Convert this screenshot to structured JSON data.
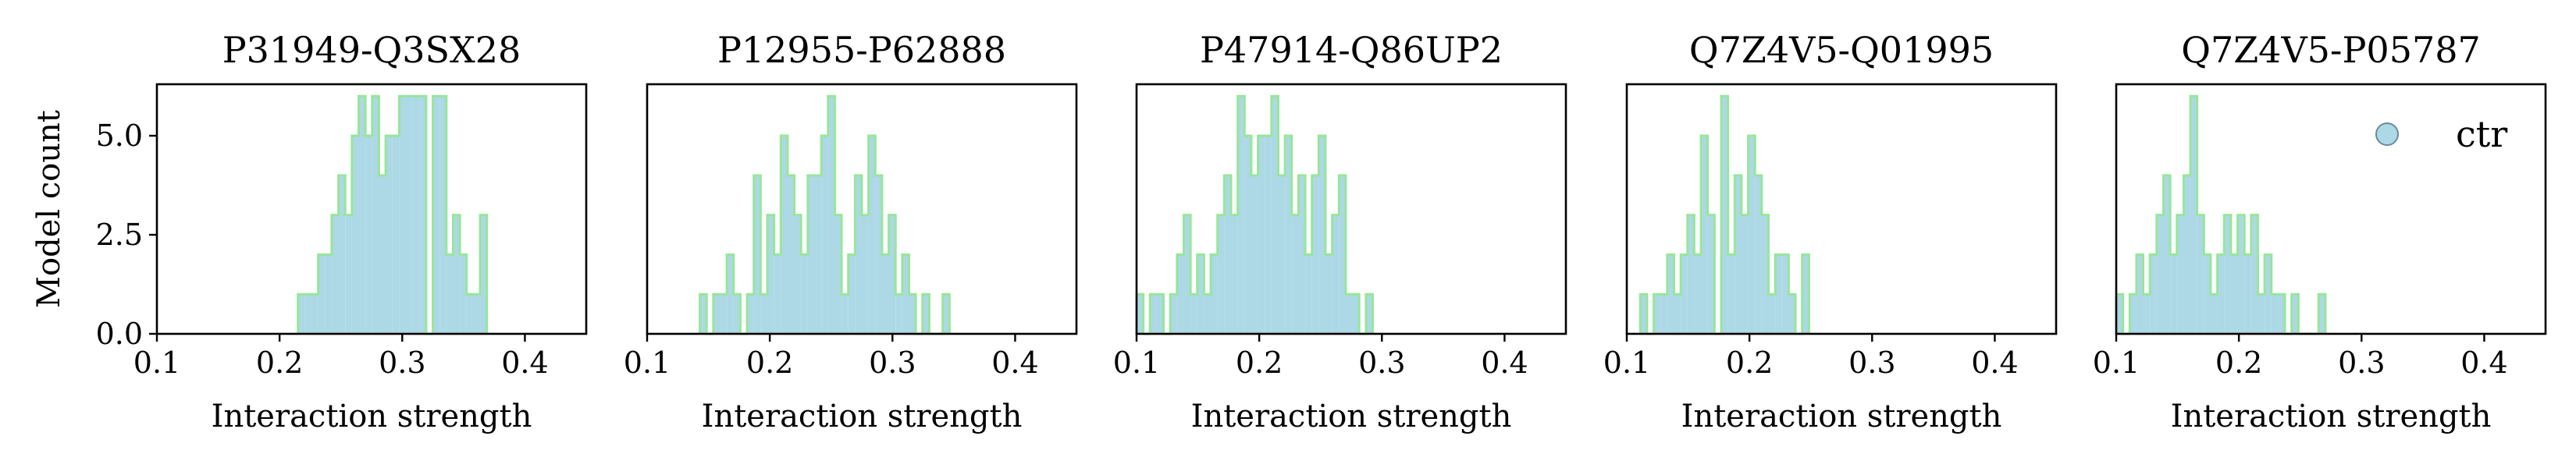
{
  "chart_data": [
    {
      "type": "histogram",
      "title": "P31949-Q3SX28",
      "xlabel": "Interaction strength",
      "ylabel": "Model count",
      "xlim": [
        0.1,
        0.45
      ],
      "ylim": [
        0,
        6.3
      ],
      "xticks": [
        "0.1",
        "0.2",
        "0.3",
        "0.4"
      ],
      "yticks": [
        "0.0",
        "2.5",
        "5.0"
      ],
      "bin_start": 0.215,
      "bin_width": 0.0055,
      "counts": [
        1,
        1,
        1,
        2,
        2,
        3,
        4,
        3,
        5,
        6,
        5,
        6,
        4,
        5,
        5,
        6,
        6,
        6,
        6,
        0,
        6,
        6,
        2,
        3,
        2,
        1,
        1,
        3
      ]
    },
    {
      "type": "histogram",
      "title": "P12955-P62888",
      "xlabel": "Interaction strength",
      "ylabel": "",
      "xlim": [
        0.1,
        0.45
      ],
      "ylim": [
        0,
        6.3
      ],
      "xticks": [
        "0.1",
        "0.2",
        "0.3",
        "0.4"
      ],
      "yticks": [],
      "bin_start": 0.143,
      "bin_width": 0.0055,
      "counts": [
        1,
        0,
        1,
        1,
        2,
        1,
        0,
        1,
        4,
        1,
        3,
        2,
        5,
        4,
        3,
        2,
        4,
        4,
        5,
        6,
        3,
        1,
        2,
        4,
        3,
        5,
        4,
        2,
        3,
        1,
        2,
        1,
        0,
        1,
        0,
        0,
        1
      ]
    },
    {
      "type": "histogram",
      "title": "P47914-Q86UP2",
      "xlabel": "Interaction strength",
      "ylabel": "",
      "xlim": [
        0.1,
        0.45
      ],
      "ylim": [
        0,
        6.3
      ],
      "xticks": [
        "0.1",
        "0.2",
        "0.3",
        "0.4"
      ],
      "yticks": [],
      "bin_start": 0.1,
      "bin_width": 0.0055,
      "counts": [
        1,
        0,
        1,
        1,
        0,
        1,
        2,
        3,
        1,
        2,
        1,
        2,
        3,
        4,
        3,
        6,
        5,
        4,
        5,
        5,
        6,
        4,
        5,
        3,
        4,
        2,
        4,
        5,
        2,
        3,
        4,
        1,
        1,
        0,
        1
      ]
    },
    {
      "type": "histogram",
      "title": "Q7Z4V5-Q01995",
      "xlabel": "Interaction strength",
      "ylabel": "",
      "xlim": [
        0.1,
        0.45
      ],
      "ylim": [
        0,
        6.3
      ],
      "xticks": [
        "0.1",
        "0.2",
        "0.3",
        "0.4"
      ],
      "yticks": [],
      "bin_start": 0.111,
      "bin_width": 0.0055,
      "counts": [
        1,
        0,
        1,
        1,
        2,
        1,
        2,
        3,
        2,
        5,
        3,
        0,
        6,
        2,
        4,
        3,
        5,
        4,
        3,
        1,
        2,
        2,
        1,
        0,
        2
      ]
    },
    {
      "type": "histogram",
      "title": "Q7Z4V5-P05787",
      "xlabel": "Interaction strength",
      "ylabel": "",
      "xlim": [
        0.1,
        0.45
      ],
      "ylim": [
        0,
        6.3
      ],
      "xticks": [
        "0.1",
        "0.2",
        "0.3",
        "0.4"
      ],
      "yticks": [],
      "bin_start": 0.1,
      "bin_width": 0.0055,
      "counts": [
        1,
        0,
        1,
        2,
        1,
        2,
        3,
        4,
        2,
        3,
        4,
        6,
        3,
        2,
        1,
        2,
        3,
        2,
        3,
        2,
        3,
        1,
        2,
        1,
        1,
        0,
        1,
        0,
        0,
        0,
        1
      ],
      "legend": [
        {
          "label": "ctr",
          "marker": "circle"
        }
      ],
      "legend_position": "top-right"
    }
  ],
  "colors": {
    "fill": "#add8e6",
    "edge": "#98e69a",
    "marker": "#add8e6",
    "marker_edge": "#6b8b99"
  }
}
